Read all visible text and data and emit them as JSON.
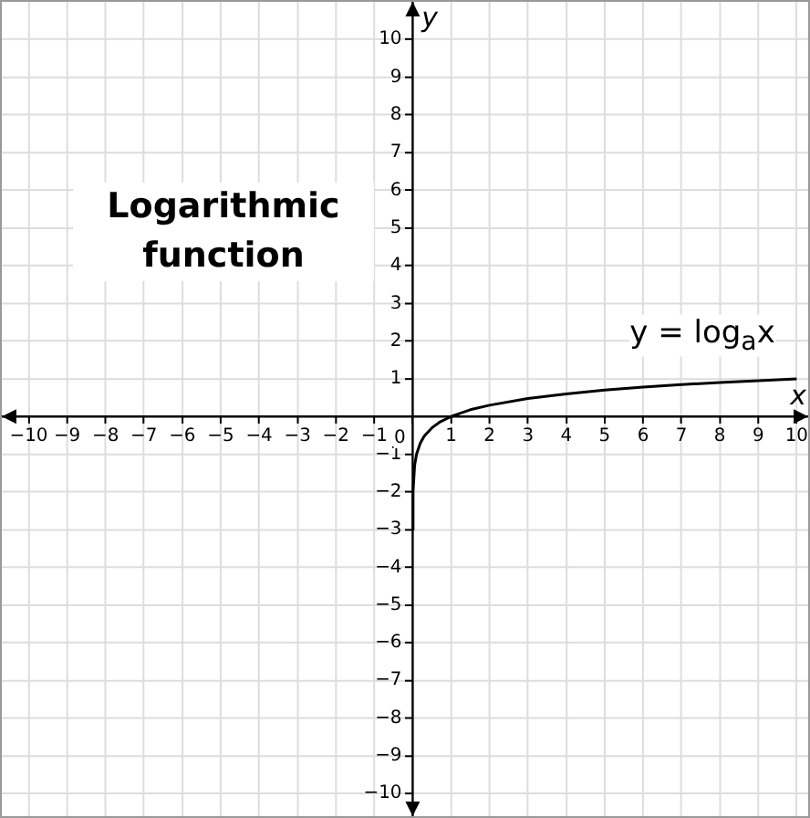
{
  "chart_data": {
    "type": "line",
    "title": "Logarithmic function",
    "xlabel": "x",
    "ylabel": "y",
    "annotations": [
      "y = log$_{a}$x",
      "0"
    ],
    "x": [
      0.001,
      0.01,
      0.05,
      0.1,
      0.2,
      0.3,
      0.5,
      0.7,
      1,
      1.5,
      2,
      3,
      4,
      5,
      6,
      7,
      8,
      9,
      10
    ],
    "series": [
      {
        "color": "#000000",
        "values": [
          -3,
          -2,
          -1.3,
          -1,
          -0.7,
          -0.52,
          -0.3,
          -0.15,
          0,
          0.18,
          0.3,
          0.48,
          0.6,
          0.7,
          0.78,
          0.85,
          0.9,
          0.95,
          1
        ]
      }
    ],
    "xlim": [
      -10.7,
      10.3
    ],
    "ylim": [
      -10.6,
      11
    ],
    "xticks": [
      {
        "value": -10,
        "label": "−10"
      },
      {
        "value": -9,
        "label": "−9"
      },
      {
        "value": -8,
        "label": "−8"
      },
      {
        "value": -7,
        "label": "−7"
      },
      {
        "value": -6,
        "label": "−6"
      },
      {
        "value": -5,
        "label": "−5"
      },
      {
        "value": -4,
        "label": "−4"
      },
      {
        "value": -3,
        "label": "−3"
      },
      {
        "value": -2,
        "label": "−2"
      },
      {
        "value": -1,
        "label": "−1"
      },
      {
        "value": 0,
        "label": null
      },
      1,
      2,
      3,
      4,
      5,
      6,
      7,
      8,
      9,
      10
    ],
    "yticks": [
      {
        "value": -10,
        "label": "−10"
      },
      {
        "value": -9,
        "label": "−9"
      },
      {
        "value": -8,
        "label": "−8"
      },
      {
        "value": -7,
        "label": "−7"
      },
      {
        "value": -6,
        "label": "−6"
      },
      {
        "value": -5,
        "label": "−5"
      },
      {
        "value": -4,
        "label": "−4"
      },
      {
        "value": -3,
        "label": "−3"
      },
      {
        "value": -2,
        "label": "−2"
      },
      {
        "value": -1,
        "label": "−1"
      },
      {
        "value": 0,
        "label": null
      },
      1,
      2,
      3,
      4,
      5,
      6,
      7,
      8,
      9,
      10
    ],
    "grid": true,
    "legend": false,
    "marker": "none",
    "line_style": "solid"
  }
}
